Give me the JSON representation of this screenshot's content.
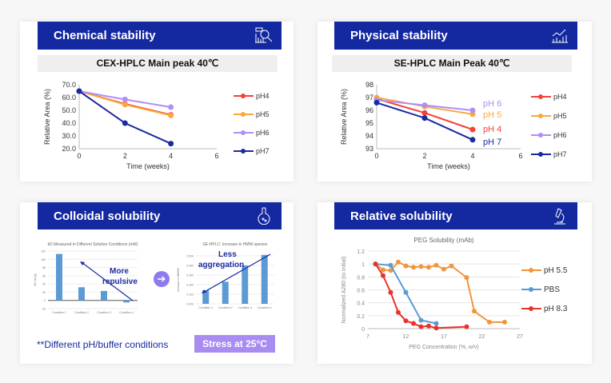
{
  "panels": [
    {
      "title": "Chemical stability",
      "icon": "chart-magnifier-icon",
      "subtitle": "CEX-HPLC  Main peak 40℃"
    },
    {
      "title": "Physical stability",
      "icon": "growth-chart-icon",
      "subtitle": "SE-HPLC Main Peak 40℃"
    },
    {
      "title": "Colloidal solubility",
      "icon": "flask-icon",
      "note": "**Different pH/buffer conditions",
      "button": "Stress at 25°C",
      "annotations": [
        "More",
        "repulsive",
        "Less",
        "aggregation"
      ]
    },
    {
      "title": "Relative solubility",
      "icon": "microscope-icon"
    }
  ],
  "colors": {
    "header": "#1428a0",
    "pH4": "#f4403a",
    "pH5": "#f9a83c",
    "pH6": "#b08ef5",
    "pH7": "#1b2aa0"
  },
  "chart_data": [
    {
      "type": "line",
      "xlabel": "Time  (weeks)",
      "ylabel": "Relative  Area (%)",
      "xlim": [
        0,
        6
      ],
      "ylim": [
        20,
        70
      ],
      "xticks": [
        0,
        2,
        4,
        6
      ],
      "yticks": [
        "20.0",
        "30.0",
        "40.0",
        "50.0",
        "60.0",
        "70.0"
      ],
      "legend": "right",
      "x": [
        0,
        2,
        4
      ],
      "series": [
        {
          "name": "pH4",
          "color": "#f4403a",
          "values": [
            65,
            55,
            46.5
          ]
        },
        {
          "name": "pH5",
          "color": "#f9a83c",
          "values": [
            65,
            54.5,
            46
          ]
        },
        {
          "name": "pH6",
          "color": "#b08ef5",
          "values": [
            65,
            58.5,
            52.5
          ]
        },
        {
          "name": "pH7",
          "color": "#1b2aa0",
          "values": [
            65,
            40,
            24
          ]
        }
      ]
    },
    {
      "type": "line",
      "xlabel": "Time  (weeks)",
      "ylabel": "Relative  Area (%)",
      "xlim": [
        0,
        6
      ],
      "ylim": [
        93,
        98
      ],
      "xticks": [
        0,
        2,
        4,
        6
      ],
      "yticks": [
        "93",
        "94",
        "95",
        "96",
        "97",
        "98"
      ],
      "legend": "right",
      "x": [
        0,
        2,
        4
      ],
      "series": [
        {
          "name": "pH4",
          "color": "#f4403a",
          "values": [
            96.9,
            95.8,
            94.5
          ],
          "label": "pH 4"
        },
        {
          "name": "pH5",
          "color": "#f9a83c",
          "values": [
            97,
            96.3,
            95.7
          ],
          "label": "pH 5"
        },
        {
          "name": "pH6",
          "color": "#b08ef5",
          "values": [
            96.8,
            96.4,
            96
          ],
          "label": "pH 6"
        },
        {
          "name": "pH7",
          "color": "#1b2aa0",
          "values": [
            96.6,
            95.4,
            93.7
          ],
          "label": "pH 7"
        }
      ]
    },
    {
      "type": "bar",
      "title": "kD Measured in Different Solution Conditions (mM)",
      "ylabel": "kD (mL/g)",
      "categories": [
        "Condition 1",
        "Condition 2",
        "Condition 3",
        "Condition 4"
      ],
      "values": [
        113,
        32,
        23,
        -5
      ],
      "ylim": [
        -20,
        120
      ],
      "yticks": [
        "-20",
        "0",
        "20",
        "40",
        "60",
        "80",
        "100",
        "120"
      ],
      "color": "#5b9bd5"
    },
    {
      "type": "bar",
      "title": "SE-HPLC:  Increase in HMW species",
      "ylabel": "Increase in HMW%",
      "categories": [
        "Condition 1",
        "Condition 2",
        "Condition 3",
        "Condition 4"
      ],
      "values": [
        0.14,
        0.23,
        0.4,
        0.51
      ],
      "ylim": [
        0,
        0.5
      ],
      "yticks": [
        "0.000",
        "0.100",
        "0.200",
        "0.300",
        "0.400",
        "0.500"
      ],
      "color": "#5b9bd5"
    },
    {
      "type": "line",
      "title": "PEG Solubility (mAb)",
      "xlabel": "PEG Concentration (%, w/v)",
      "ylabel": "Normalized A280 (to initial)",
      "xlim": [
        7,
        27
      ],
      "ylim": [
        0,
        1.2
      ],
      "xticks": [
        7,
        12,
        17,
        22,
        27
      ],
      "yticks": [
        "0",
        "0.2",
        "0.4",
        "0.6",
        "0.8",
        "1",
        "1.2"
      ],
      "legend": "right",
      "series": [
        {
          "name": "pH 5.5",
          "color": "#f0963c",
          "points": [
            [
              8,
              1
            ],
            [
              9,
              0.91
            ],
            [
              10,
              0.9
            ],
            [
              11,
              1.03
            ],
            [
              12,
              0.97
            ],
            [
              13,
              0.95
            ],
            [
              14,
              0.96
            ],
            [
              15,
              0.95
            ],
            [
              16,
              0.98
            ],
            [
              17,
              0.92
            ],
            [
              18,
              0.97
            ],
            [
              20,
              0.79
            ],
            [
              21,
              0.27
            ],
            [
              23,
              0.1
            ],
            [
              25,
              0.1
            ]
          ]
        },
        {
          "name": "PBS",
          "color": "#5b9bd5",
          "points": [
            [
              8,
              1
            ],
            [
              10,
              0.98
            ],
            [
              12,
              0.56
            ],
            [
              14,
              0.13
            ],
            [
              16,
              0.08
            ]
          ]
        },
        {
          "name": "pH 8.3",
          "color": "#e8332a",
          "points": [
            [
              8,
              1
            ],
            [
              9,
              0.82
            ],
            [
              10,
              0.56
            ],
            [
              11,
              0.25
            ],
            [
              12,
              0.12
            ],
            [
              13,
              0.08
            ],
            [
              14,
              0.03
            ],
            [
              15,
              0.04
            ],
            [
              16,
              0.01
            ],
            [
              20,
              0.03
            ]
          ]
        }
      ]
    }
  ]
}
